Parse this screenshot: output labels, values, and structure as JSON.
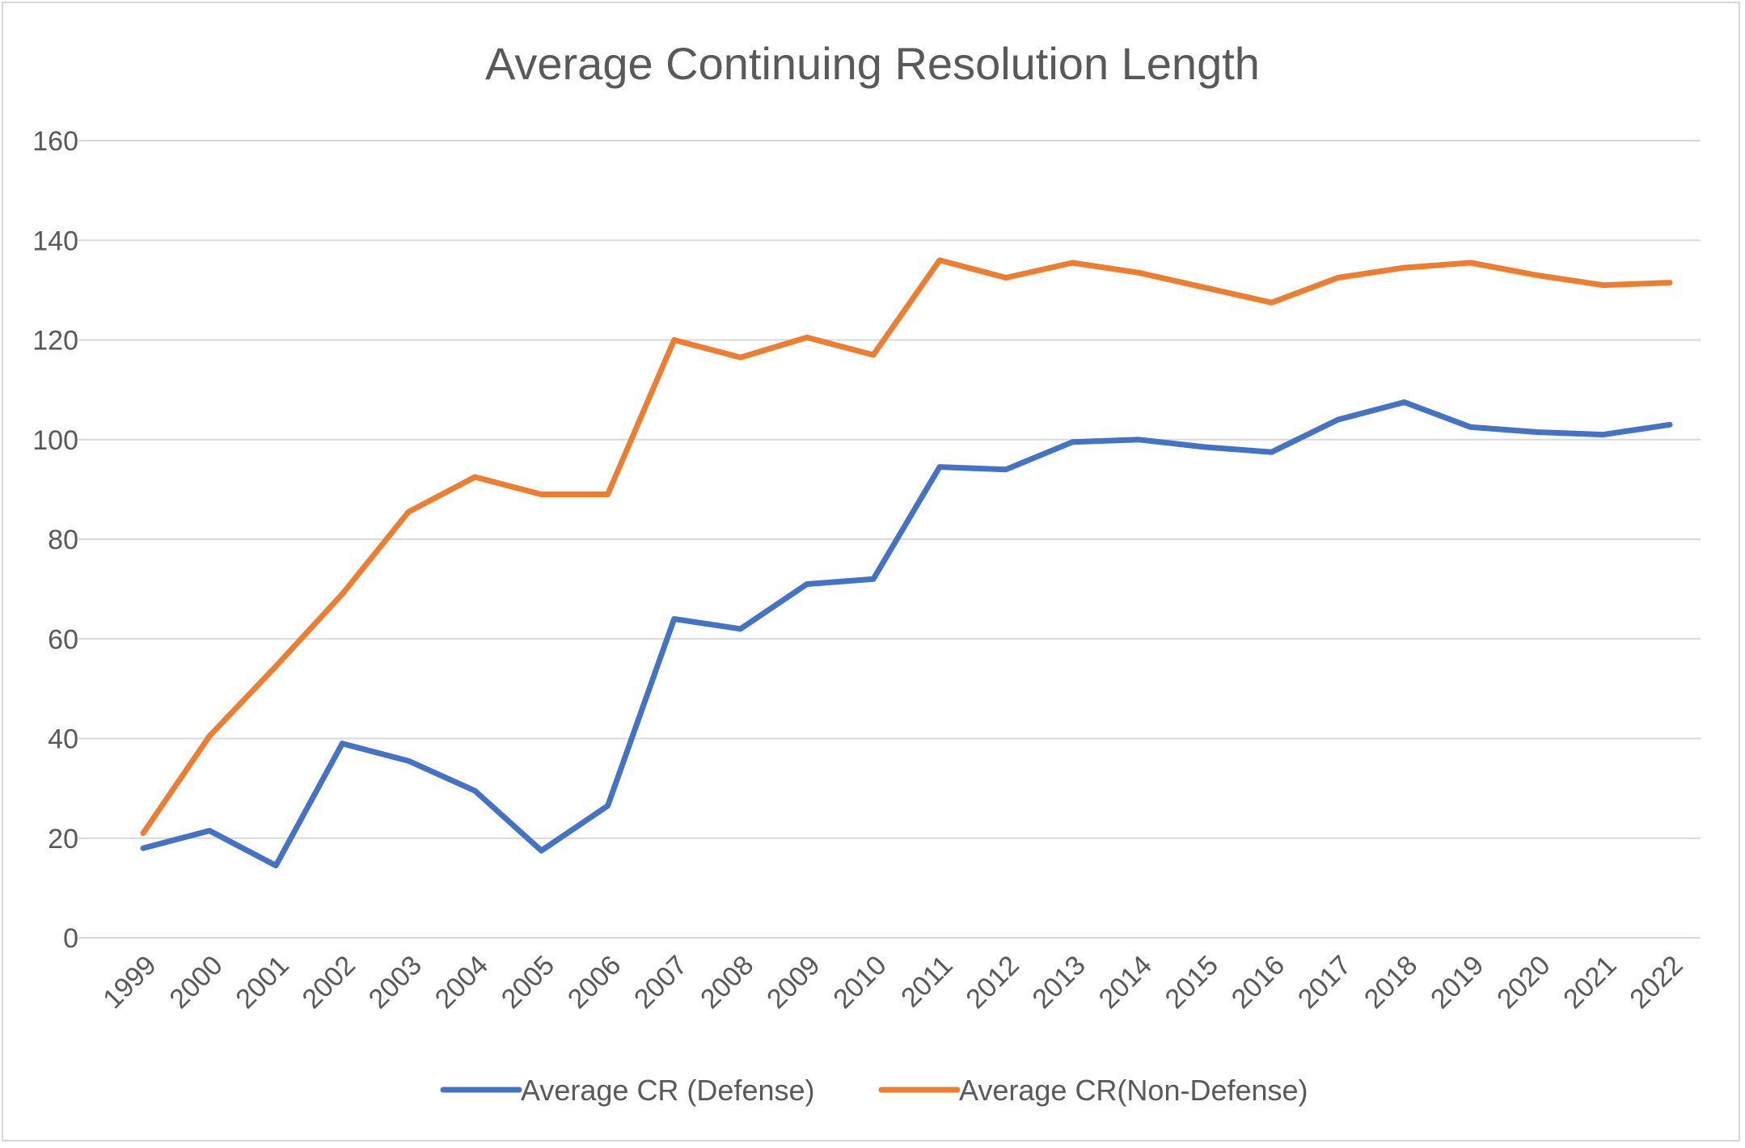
{
  "chart_data": {
    "type": "line",
    "title": "Average Continuing Resolution Length",
    "xlabel": "",
    "ylabel": "",
    "ylim": [
      0,
      160
    ],
    "yticks": [
      0,
      20,
      40,
      60,
      80,
      100,
      120,
      140,
      160
    ],
    "grid": true,
    "legend_position": "bottom",
    "categories": [
      "1999",
      "2000",
      "2001",
      "2002",
      "2003",
      "2004",
      "2005",
      "2006",
      "2007",
      "2008",
      "2009",
      "2010",
      "2011",
      "2012",
      "2013",
      "2014",
      "2015",
      "2016",
      "2017",
      "2018",
      "2019",
      "2020",
      "2021",
      "2022"
    ],
    "series": [
      {
        "name": "Average CR (Defense)",
        "color": "#4472C4",
        "values": [
          18,
          21.5,
          14.5,
          39,
          35.5,
          29.5,
          17.5,
          26.5,
          64,
          62,
          71,
          72,
          94.5,
          94,
          99.5,
          100,
          98.5,
          97.5,
          104,
          107.5,
          102.5,
          101.5,
          101,
          103
        ]
      },
      {
        "name": "Average CR(Non-Defense)",
        "color": "#ED7D31",
        "values": [
          21,
          40.5,
          54.5,
          69,
          85.5,
          92.5,
          89,
          89,
          120,
          116.5,
          120.5,
          117,
          136,
          132.5,
          135.5,
          133.5,
          130.5,
          127.5,
          132.5,
          134.5,
          135.5,
          133,
          131,
          131.5
        ]
      }
    ]
  }
}
